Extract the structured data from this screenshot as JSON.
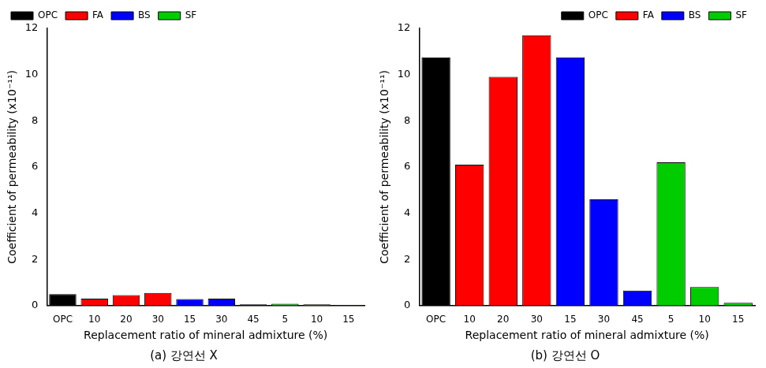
{
  "chart_data": [
    {
      "type": "bar",
      "title": "(a) 강연선 X",
      "x_label": "Replacement ratio of mineral admixture (%)",
      "y_label": "Coefficient of permeability (x10⁻¹¹)",
      "categories": [
        "OPC",
        "10",
        "20",
        "30",
        "15",
        "30",
        "45",
        "5",
        "10",
        "15"
      ],
      "series": [
        {
          "name": "OPC",
          "color": "#000000",
          "values": [
            0.5,
            null,
            null,
            null,
            null,
            null,
            null,
            null,
            null,
            null
          ]
        },
        {
          "name": "FA",
          "color": "#ff0000",
          "values": [
            null,
            0.3,
            0.45,
            0.55,
            null,
            null,
            null,
            null,
            null,
            null
          ]
        },
        {
          "name": "BS",
          "color": "#0000ff",
          "values": [
            null,
            null,
            null,
            null,
            0.28,
            0.3,
            0.05,
            null,
            null,
            null
          ]
        },
        {
          "name": "SF",
          "color": "#00cc00",
          "values": [
            null,
            null,
            null,
            null,
            null,
            null,
            null,
            0.08,
            0.05,
            0.02
          ]
        }
      ],
      "ylim": [
        0,
        12
      ],
      "yticks": [
        0,
        2,
        4,
        6,
        8,
        10,
        12
      ],
      "grid": false,
      "legend": "upper left"
    },
    {
      "type": "bar",
      "title": "(b) 강연선 O",
      "x_label": "Replacement ratio of mineral admixture (%)",
      "y_label": "Coefficient of permeability (x10⁻¹¹)",
      "categories": [
        "OPC",
        "10",
        "20",
        "30",
        "15",
        "30",
        "45",
        "5",
        "10",
        "15"
      ],
      "series": [
        {
          "name": "OPC",
          "color": "#000000",
          "values": [
            10.75,
            null,
            null,
            null,
            null,
            null,
            null,
            null,
            null,
            null
          ]
        },
        {
          "name": "FA",
          "color": "#ff0000",
          "values": [
            null,
            6.1,
            9.9,
            11.7,
            null,
            null,
            null,
            null,
            null,
            null
          ]
        },
        {
          "name": "BS",
          "color": "#0000ff",
          "values": [
            null,
            null,
            null,
            null,
            10.75,
            4.6,
            0.65,
            null,
            null,
            null
          ]
        },
        {
          "name": "SF",
          "color": "#00cc00",
          "values": [
            null,
            null,
            null,
            null,
            null,
            null,
            null,
            6.2,
            0.8,
            0.12
          ]
        }
      ],
      "ylim": [
        0,
        12
      ],
      "yticks": [
        0,
        2,
        4,
        6,
        8,
        10,
        12
      ],
      "grid": false,
      "legend": "upper right"
    }
  ]
}
